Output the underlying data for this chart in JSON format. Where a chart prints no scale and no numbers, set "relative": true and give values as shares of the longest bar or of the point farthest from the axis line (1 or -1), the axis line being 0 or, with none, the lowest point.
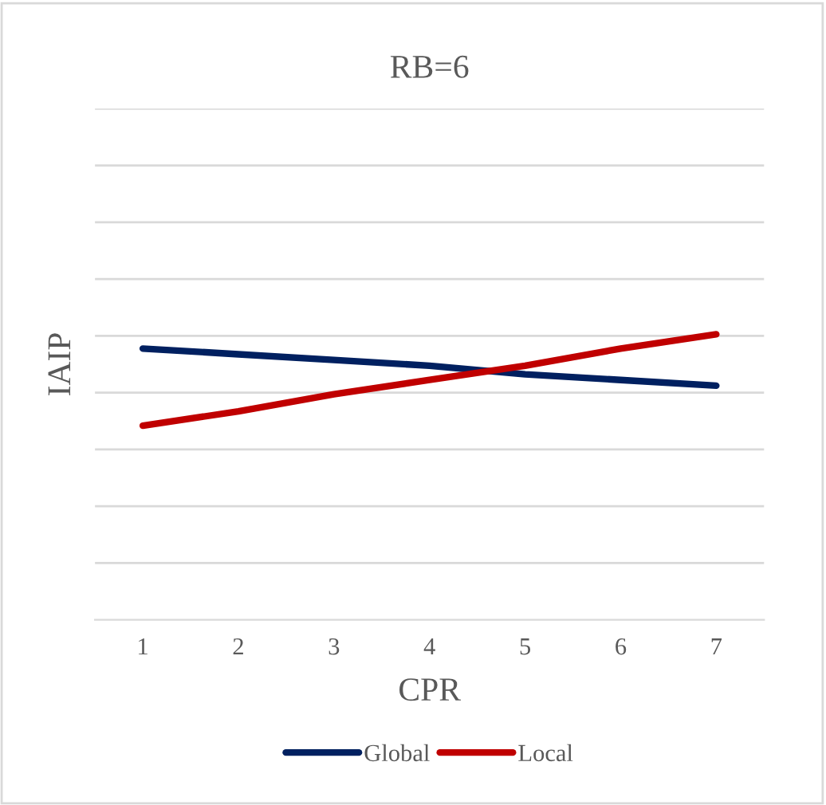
{
  "chart_data": {
    "type": "line",
    "title": "RB=6",
    "xlabel": "CPR",
    "ylabel": "IAIP",
    "relative": true,
    "categories": [
      "1",
      "2",
      "3",
      "4",
      "5",
      "6",
      "7"
    ],
    "series": [
      {
        "name": "Global",
        "color": "#002060",
        "values": [
          0.95,
          0.93,
          0.91,
          0.89,
          0.86,
          0.84,
          0.82
        ]
      },
      {
        "name": "Local",
        "color": "#c00000",
        "values": [
          0.68,
          0.73,
          0.79,
          0.84,
          0.89,
          0.95,
          1
        ]
      }
    ],
    "grid": "y",
    "legend": "bottom",
    "marker": "none",
    "line_style": "solid"
  }
}
